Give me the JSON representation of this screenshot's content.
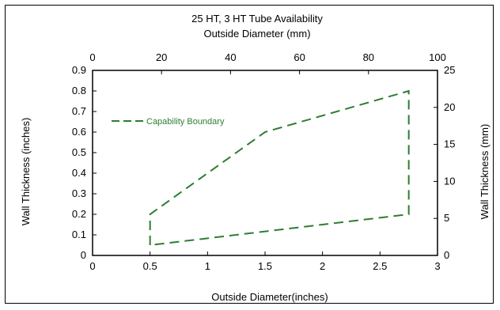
{
  "chart_data": {
    "type": "line",
    "title": "25 HT, 3 HT Tube Availability",
    "top_axis_label": "Outside Diameter (mm)",
    "xlabel": "Outside Diameter(inches)",
    "ylabel": "Wall Thickness (inches)",
    "y2label": "Wall Thickness (mm)",
    "xlim": [
      0,
      3
    ],
    "ylim": [
      0,
      0.9
    ],
    "x2lim": [
      0,
      100
    ],
    "y2lim": [
      0,
      25
    ],
    "x_ticks": [
      "0",
      "0.5",
      "1",
      "1.5",
      "2",
      "2.5",
      "3"
    ],
    "y_ticks": [
      "0",
      "0.1",
      "0.2",
      "0.3",
      "0.4",
      "0.5",
      "0.6",
      "0.7",
      "0.8",
      "0.9"
    ],
    "x2_ticks": [
      "0",
      "20",
      "40",
      "60",
      "80",
      "100"
    ],
    "y2_ticks": [
      "0",
      "5",
      "10",
      "15",
      "20",
      "25"
    ],
    "grid": false,
    "legend_position": "upper-left",
    "series": [
      {
        "name": "Capability Boundary",
        "color": "#2e7d32",
        "style": "dashed",
        "x": [
          0.5,
          0.5,
          1.5,
          2.75,
          2.75,
          0.5
        ],
        "y": [
          0.05,
          0.2,
          0.6,
          0.8,
          0.2,
          0.05
        ]
      }
    ]
  }
}
